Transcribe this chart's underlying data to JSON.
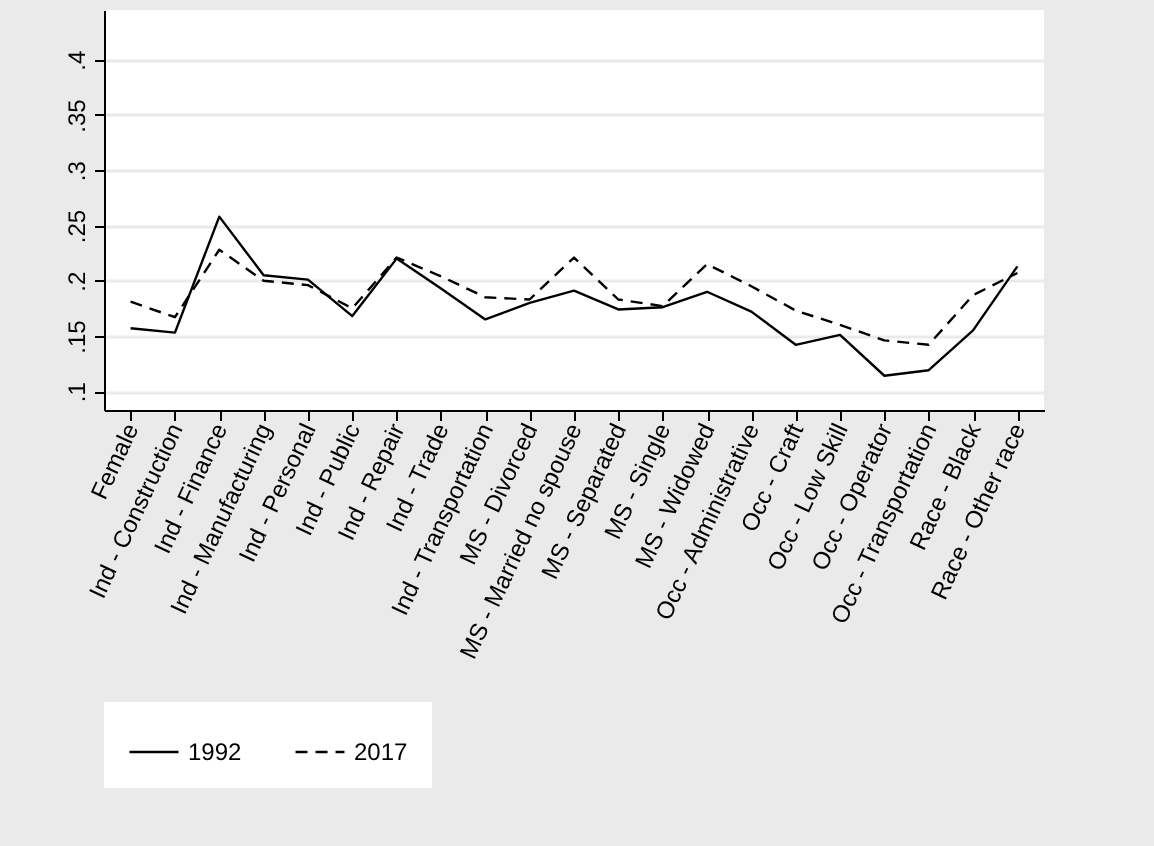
{
  "chart_data": {
    "type": "line",
    "categories": [
      "Female",
      "Ind - Construction",
      "Ind - Finance",
      "Ind - Manufacturing",
      "Ind - Personal",
      "Ind - Public",
      "Ind - Repair",
      "Ind - Trade",
      "Ind - Transportation",
      "MS - Divorced",
      "MS - Married no spouse",
      "MS - Separated",
      "MS - Single",
      "MS - Widowed",
      "Occ - Administrative",
      "Occ - Craft",
      "Occ - Low Skill",
      "Occ - Operator",
      "Occ - Transportation",
      "Race - Black",
      "Race - Other race"
    ],
    "series": [
      {
        "name": "1992",
        "color": "#000000",
        "line_style": "solid",
        "values": [
          0.157,
          0.153,
          0.258,
          0.205,
          0.201,
          0.168,
          0.22,
          0.193,
          0.165,
          0.18,
          0.191,
          0.174,
          0.176,
          0.19,
          0.172,
          0.142,
          0.151,
          0.114,
          0.119,
          0.155,
          0.213
        ]
      },
      {
        "name": "2017",
        "color": "#000000",
        "line_style": "dashed",
        "values": [
          0.181,
          0.167,
          0.228,
          0.2,
          0.196,
          0.175,
          0.221,
          0.204,
          0.185,
          0.183,
          0.221,
          0.183,
          0.177,
          0.215,
          0.195,
          0.173,
          0.16,
          0.146,
          0.142,
          0.187,
          0.207
        ]
      }
    ],
    "ylim": [
      0.083,
      0.445
    ],
    "yticks": [
      {
        "value": 0.1,
        "label": ".1"
      },
      {
        "value": 0.15,
        "label": ".15"
      },
      {
        "value": 0.2,
        "label": ".2"
      },
      {
        "value": 0.25,
        "label": ".25"
      },
      {
        "value": 0.3,
        "label": ".3"
      },
      {
        "value": 0.35,
        "label": ".35"
      },
      {
        "value": 0.4,
        "label": ".4"
      }
    ],
    "grid": "y",
    "legend": "bottom",
    "marker": "none"
  }
}
